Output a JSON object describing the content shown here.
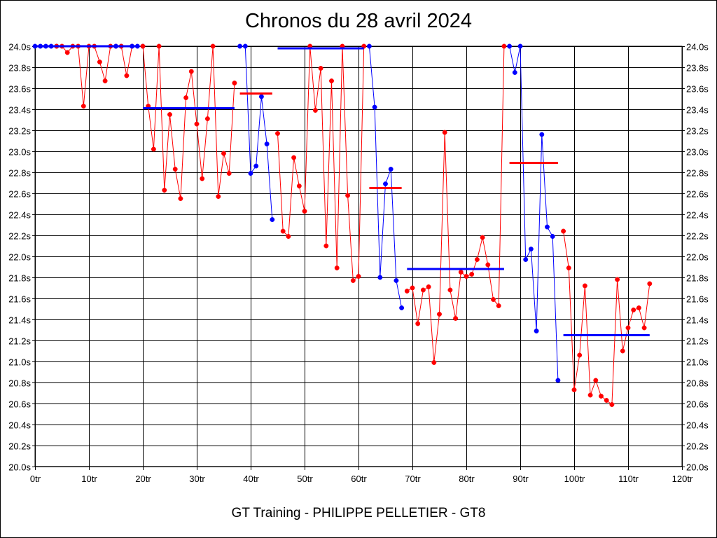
{
  "chart_data": {
    "type": "line",
    "title": "Chronos du 28 avril 2024",
    "footer": "GT Training - PHILIPPE PELLETIER - GT8",
    "xlabel": "",
    "ylabel": "",
    "xlim": [
      0,
      120
    ],
    "ylim": [
      20.0,
      24.0
    ],
    "grid": true,
    "x_ticks": [
      "0tr",
      "10tr",
      "20tr",
      "30tr",
      "40tr",
      "50tr",
      "60tr",
      "70tr",
      "80tr",
      "90tr",
      "100tr",
      "110tr",
      "120tr"
    ],
    "y_ticks": [
      "20.0s",
      "20.2s",
      "20.4s",
      "20.6s",
      "20.8s",
      "21.0s",
      "21.2s",
      "21.4s",
      "21.6s",
      "21.8s",
      "22.0s",
      "22.2s",
      "22.4s",
      "22.6s",
      "22.8s",
      "23.0s",
      "23.2s",
      "23.4s",
      "23.6s",
      "23.8s",
      "24.0s"
    ],
    "colors": {
      "red": "#ff0000",
      "blue": "#0000ff",
      "grid": "#000000"
    },
    "series": [
      {
        "color": "blue",
        "x": [
          0,
          1,
          2,
          3,
          4
        ],
        "y": [
          24.0,
          24.0,
          24.0,
          24.0,
          24.0
        ]
      },
      {
        "color": "red",
        "x": [
          4,
          5,
          6,
          7,
          8,
          9,
          10,
          11,
          12,
          13,
          14,
          15
        ],
        "y": [
          24.0,
          24.0,
          23.94,
          24.0,
          24.0,
          23.43,
          24.0,
          24.0,
          23.85,
          23.67,
          24.0,
          24.0
        ]
      },
      {
        "color": "blue",
        "x": [
          15,
          16
        ],
        "y": [
          24.0,
          24.0
        ]
      },
      {
        "color": "red",
        "x": [
          16,
          17,
          18
        ],
        "y": [
          24.0,
          23.72,
          24.0
        ]
      },
      {
        "color": "blue",
        "x": [
          18,
          19,
          20
        ],
        "y": [
          24.0,
          24.0,
          24.0
        ]
      },
      {
        "color": "red",
        "x": [
          20,
          21,
          22,
          23,
          24,
          25,
          26,
          27,
          28,
          29,
          30,
          31,
          32,
          33,
          34,
          35,
          36,
          37
        ],
        "y": [
          24.0,
          23.43,
          23.02,
          24.0,
          22.63,
          23.35,
          22.83,
          22.55,
          23.51,
          23.76,
          23.26,
          22.74,
          23.31,
          24.0,
          22.57,
          22.98,
          22.79,
          23.65
        ]
      },
      {
        "color": "blue",
        "x": [
          38,
          39,
          40,
          41,
          42,
          43,
          44
        ],
        "y": [
          24.0,
          24.0,
          22.79,
          22.86,
          23.52,
          23.07,
          22.35
        ]
      },
      {
        "color": "red",
        "x": [
          45,
          46,
          47,
          48,
          49,
          50,
          51,
          52,
          53,
          54,
          55,
          56,
          57,
          58,
          59,
          60,
          61
        ],
        "y": [
          23.17,
          22.24,
          22.19,
          22.94,
          22.67,
          22.43,
          24.0,
          23.39,
          23.79,
          22.1,
          23.67,
          21.89,
          24.0,
          22.58,
          21.77,
          21.81,
          24.0
        ]
      },
      {
        "color": "blue",
        "x": [
          62,
          63,
          64,
          65,
          66,
          67,
          68
        ],
        "y": [
          24.0,
          23.42,
          21.8,
          22.69,
          22.83,
          21.77,
          21.51
        ]
      },
      {
        "color": "red",
        "x": [
          69,
          70,
          71,
          72,
          73,
          74,
          75,
          76,
          77,
          78,
          79,
          80,
          81,
          82,
          83,
          84,
          85,
          86,
          87
        ],
        "y": [
          21.67,
          21.7,
          21.36,
          21.68,
          21.71,
          20.99,
          21.45,
          23.18,
          21.68,
          21.41,
          21.85,
          21.81,
          21.83,
          21.97,
          22.18,
          21.92,
          21.59,
          21.53,
          24.0
        ]
      },
      {
        "color": "blue",
        "x": [
          88,
          89,
          90,
          91,
          92,
          93,
          94,
          95,
          96,
          97
        ],
        "y": [
          24.0,
          23.75,
          24.0,
          21.97,
          22.07,
          21.29,
          23.16,
          22.28,
          22.19,
          20.82
        ]
      },
      {
        "color": "red",
        "x": [
          98,
          99,
          100,
          101,
          102,
          103,
          104,
          105,
          106,
          107,
          108,
          109,
          110,
          111,
          112,
          113,
          114
        ],
        "y": [
          22.24,
          21.89,
          20.73,
          21.06,
          21.72,
          20.68,
          20.82,
          20.67,
          20.63,
          20.59,
          21.78,
          21.1,
          21.32,
          21.49,
          21.51,
          21.32,
          21.74
        ]
      }
    ],
    "averages": [
      {
        "color": "blue",
        "x_start": 0,
        "x_end": 19,
        "y": 24.0
      },
      {
        "color": "blue",
        "x_start": 20,
        "x_end": 37,
        "y": 23.41
      },
      {
        "color": "red",
        "x_start": 38,
        "x_end": 44,
        "y": 23.55
      },
      {
        "color": "blue",
        "x_start": 45,
        "x_end": 61,
        "y": 23.98
      },
      {
        "color": "red",
        "x_start": 62,
        "x_end": 68,
        "y": 22.65
      },
      {
        "color": "blue",
        "x_start": 69,
        "x_end": 87,
        "y": 21.88
      },
      {
        "color": "red",
        "x_start": 88,
        "x_end": 97,
        "y": 22.89
      },
      {
        "color": "blue",
        "x_start": 98,
        "x_end": 114,
        "y": 21.25
      }
    ]
  }
}
